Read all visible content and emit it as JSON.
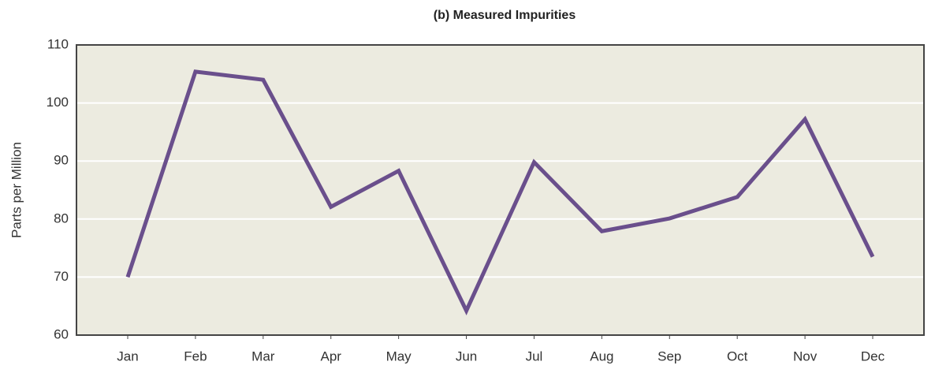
{
  "chart_data": {
    "type": "line",
    "title": "(b) Measured Impurities",
    "y_label": "Parts per Million",
    "categories": [
      "Jan",
      "Feb",
      "Mar",
      "Apr",
      "May",
      "Jun",
      "Jul",
      "Aug",
      "Sep",
      "Oct",
      "Nov",
      "Dec"
    ],
    "series": [
      {
        "name": "Measured Impurities",
        "color": "#6a4f8c",
        "values": [
          70,
          105.4,
          104,
          82.1,
          88.3,
          64.2,
          89.8,
          77.9,
          80.1,
          83.8,
          97.2,
          73.5
        ]
      }
    ],
    "ylim": [
      60,
      110
    ],
    "yticks": [
      60,
      70,
      80,
      90,
      100,
      110
    ],
    "grid": true
  }
}
